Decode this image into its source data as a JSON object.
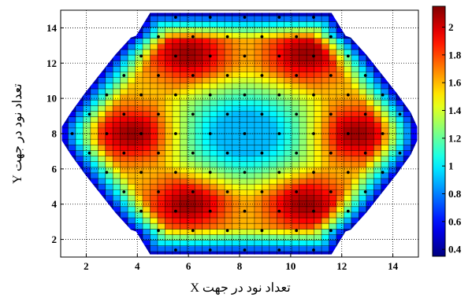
{
  "chart_data": {
    "type": "heatmap",
    "title": "",
    "xlabel": "تعداد نود در جهت X",
    "ylabel": "تعداد نود در جهت Y",
    "xlim": [
      1,
      15
    ],
    "ylim": [
      1,
      15
    ],
    "x_ticks": [
      2,
      4,
      6,
      8,
      10,
      12,
      14
    ],
    "y_ticks": [
      2,
      4,
      6,
      8,
      10,
      12,
      14
    ],
    "grid": true,
    "colormap": "jet",
    "colorbar": {
      "range": [
        0.35,
        2.15
      ],
      "ticks": [
        0.4,
        0.6,
        0.8,
        1,
        1.2,
        1.4,
        1.6,
        1.8,
        2
      ]
    },
    "field": {
      "description_values": "approximate node values: low (~0.9) at center (8.2, 8), peak ~2.1 on a hexagonal ring of six hot spots, falling to ~0.5 at the hexagonal boundary",
      "center_value": 0.9,
      "peak_value": 2.1,
      "edge_value": 0.45,
      "hot_spots": [
        [
          6.0,
          12.5
        ],
        [
          10.6,
          12.5
        ],
        [
          3.8,
          8.0
        ],
        [
          12.6,
          8.0
        ],
        [
          6.0,
          4.0
        ],
        [
          10.6,
          4.0
        ]
      ]
    },
    "row_extents": [
      {
        "y": 14.85,
        "x": [
          4.5,
          11.6
        ]
      },
      {
        "y": 13.55,
        "x": [
          3.95,
          12.15
        ]
      },
      {
        "y": 13.45,
        "x": [
          3.75,
          12.35
        ]
      },
      {
        "y": 12.5,
        "x": [
          3.15,
          12.95
        ]
      },
      {
        "y": 11.4,
        "x": [
          2.55,
          13.55
        ]
      },
      {
        "y": 10.3,
        "x": [
          1.95,
          14.15
        ]
      },
      {
        "y": 9.2,
        "x": [
          1.4,
          14.7
        ]
      },
      {
        "y": 8.4,
        "x": [
          1.05,
          14.95
        ]
      },
      {
        "y": 7.6,
        "x": [
          1.05,
          14.95
        ]
      },
      {
        "y": 6.8,
        "x": [
          1.4,
          14.7
        ]
      },
      {
        "y": 5.7,
        "x": [
          1.95,
          14.15
        ]
      },
      {
        "y": 4.6,
        "x": [
          2.55,
          13.55
        ]
      },
      {
        "y": 3.5,
        "x": [
          3.15,
          12.95
        ]
      },
      {
        "y": 2.55,
        "x": [
          3.75,
          12.35
        ]
      },
      {
        "y": 2.45,
        "x": [
          3.95,
          12.15
        ]
      },
      {
        "y": 1.15,
        "x": [
          4.5,
          11.6
        ]
      }
    ],
    "markers_note": "black dots mark fuel-assembly node centers on a hexagonal lattice"
  }
}
